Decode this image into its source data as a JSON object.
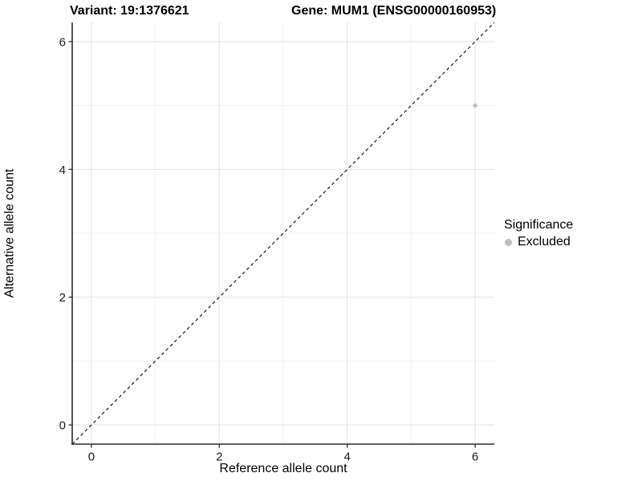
{
  "header": {
    "variant_title": "Variant: 19:1376621",
    "gene_title": "Gene: MUM1 (ENSG00000160953)"
  },
  "legend": {
    "title": "Significance",
    "items": [
      {
        "label": "Excluded",
        "marker": "circle-icon",
        "color": "#bdbdbd"
      }
    ]
  },
  "colors": {
    "background": "#ffffff",
    "axis_line": "#2b2b2b",
    "tick_label": "#1a1a1a",
    "grid_major": "#e4e4e4",
    "grid_minor": "#f1f1f1",
    "reference_line": "#000000",
    "point_excluded": "#bdbdbd"
  },
  "chart_data": {
    "type": "scatter",
    "title": "Variant: 19:1376621          Gene: MUM1 (ENSG00000160953)",
    "xlabel": "Reference allele count",
    "ylabel": "Alternative allele count",
    "xlim": [
      -0.3,
      6.3
    ],
    "ylim": [
      -0.3,
      6.3
    ],
    "x_ticks": [
      0,
      2,
      4,
      6
    ],
    "y_ticks": [
      0,
      2,
      4,
      6
    ],
    "x_minor_ticks": [
      1,
      3,
      5
    ],
    "y_minor_ticks": [
      1,
      3,
      5
    ],
    "grid": true,
    "legend_position": "right",
    "legend_title": "Significance",
    "series": [
      {
        "name": "Excluded",
        "color": "#bdbdbd",
        "marker": "circle",
        "points": [
          {
            "x": 6,
            "y": 5
          }
        ]
      }
    ],
    "reference_line": {
      "kind": "abline",
      "slope": 1,
      "intercept": 0,
      "style": "dashed",
      "color": "#000000"
    }
  }
}
